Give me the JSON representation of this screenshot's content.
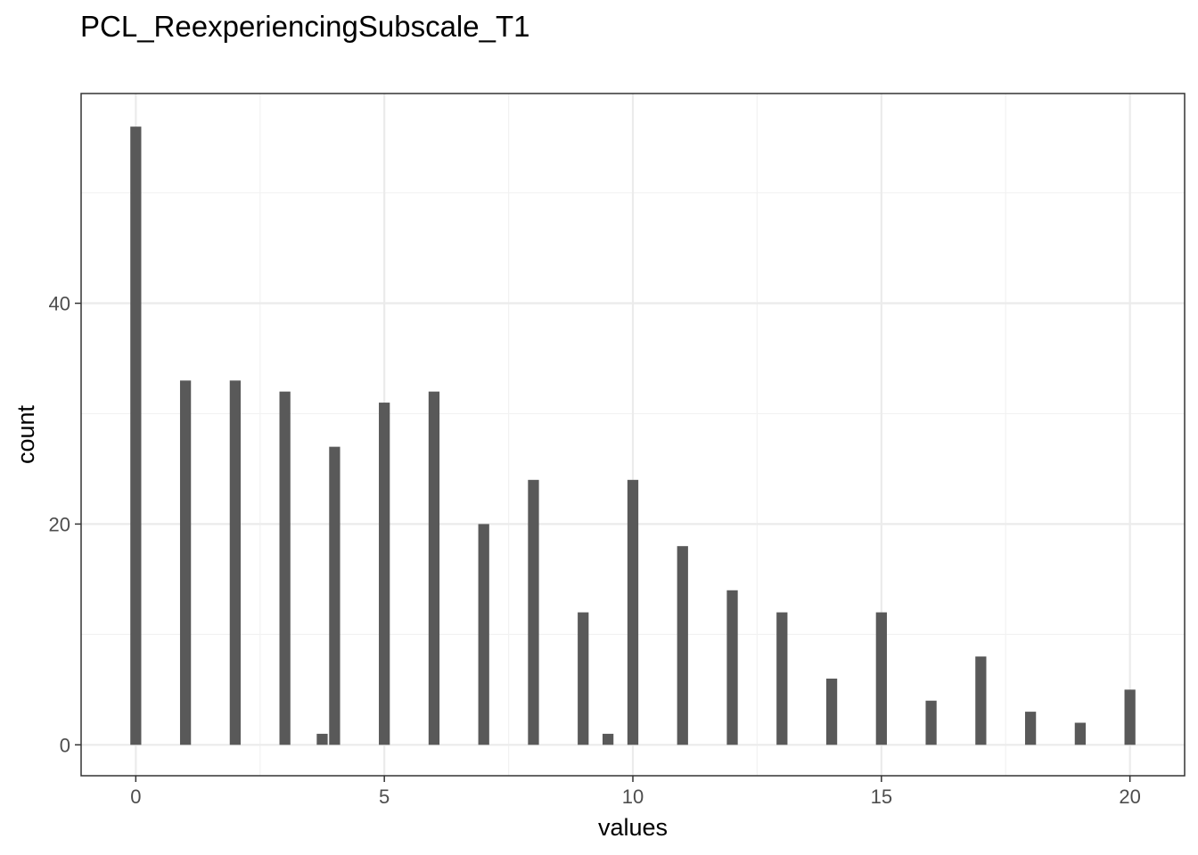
{
  "chart_data": {
    "type": "bar",
    "title": "PCL_ReexperiencingSubscale_T1",
    "xlabel": "values",
    "ylabel": "count",
    "xlim": [
      -1.1,
      21.1
    ],
    "ylim": [
      -2.8,
      59.0
    ],
    "x_ticks": [
      0,
      5,
      10,
      15,
      20
    ],
    "y_ticks": [
      0,
      20,
      40
    ],
    "grid": true,
    "legend": "none",
    "bar_width": 0.22,
    "bar_color": "#595959",
    "x": [
      0,
      1,
      2,
      3,
      3.75,
      4,
      5,
      6,
      7,
      8,
      9,
      9.5,
      10,
      11,
      12,
      13,
      14,
      15,
      16,
      17,
      18,
      19,
      20
    ],
    "values": [
      56,
      33,
      33,
      32,
      1,
      27,
      31,
      32,
      20,
      24,
      12,
      1,
      24,
      18,
      14,
      12,
      6,
      12,
      4,
      8,
      3,
      2,
      5
    ]
  }
}
